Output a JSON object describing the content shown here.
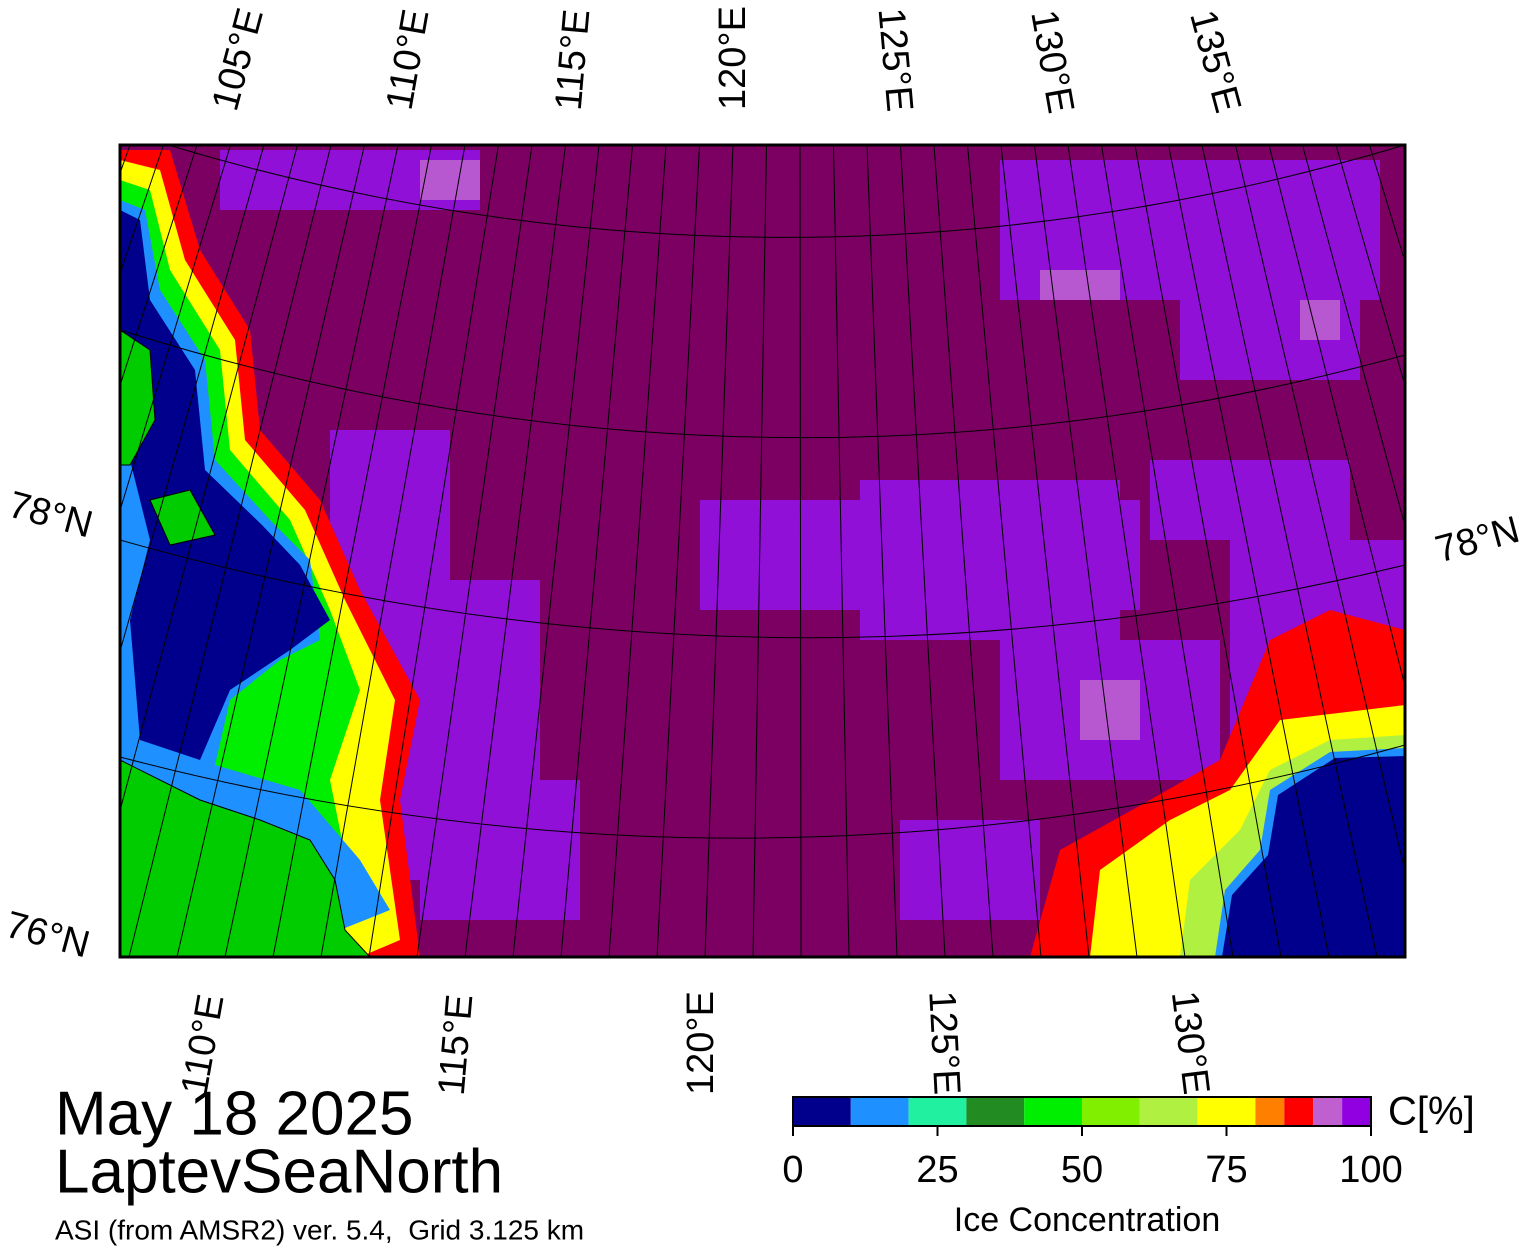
{
  "header": {
    "date": "May 18 2025",
    "region": "LaptevSeaNorth",
    "source": "ASI (from AMSR2) ver. 5.4,  Grid 3.125 km"
  },
  "map": {
    "top_longitude_labels": [
      "105°E",
      "110°E",
      "115°E",
      "120°E",
      "125°E",
      "130°E",
      "135°E"
    ],
    "bottom_longitude_labels": [
      "110°E",
      "115°E",
      "120°E",
      "125°E",
      "130°E"
    ],
    "left_latitude_labels": [
      "78°N",
      "76°N"
    ],
    "right_latitude_labels": [
      "78°N"
    ]
  },
  "colorbar": {
    "label": "Ice Concentration",
    "unit": "C[%]",
    "bounds": [
      0,
      10,
      20,
      30,
      40,
      50,
      60,
      70,
      80,
      85,
      90,
      95,
      100
    ],
    "colors": [
      "#00008c",
      "#1e90ff",
      "#20f0a0",
      "#228b22",
      "#00ee00",
      "#80f000",
      "#b0f040",
      "#ffff00",
      "#ff8000",
      "#ff0000",
      "#c060d0",
      "#9000e0"
    ],
    "ticks": [
      0,
      25,
      50,
      75,
      100
    ]
  }
}
